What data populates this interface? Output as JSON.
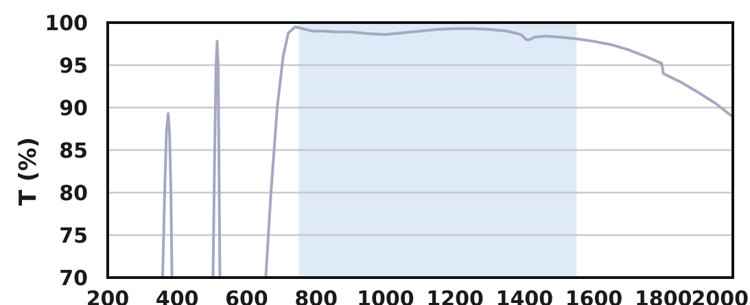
{
  "chart_data": {
    "type": "line",
    "title": "",
    "xlabel": "",
    "ylabel": "T (%)",
    "xlim": [
      200,
      2000
    ],
    "ylim": [
      70,
      100
    ],
    "x_ticks": [
      "200",
      "400",
      "600",
      "800",
      "1000",
      "1200",
      "1400",
      "1600",
      "1800",
      "2000"
    ],
    "y_ticks": [
      "70",
      "75",
      "80",
      "85",
      "90",
      "95",
      "100"
    ],
    "grid": "horizontal",
    "highlight_band": {
      "x_start": 750,
      "x_end": 1550,
      "color": "#deeaf5"
    },
    "series": [
      {
        "color": "#a3a8c3",
        "segments": [
          {
            "x": [
              358,
              364,
              369,
              374,
              378,
              382,
              385
            ],
            "y": [
              70,
              80,
              87,
              89.3,
              87,
              80,
              70
            ]
          },
          {
            "x": [
              503,
              508,
              512,
              515,
              518,
              523
            ],
            "y": [
              70,
              85,
              95,
              97.8,
              95,
              70
            ]
          },
          {
            "x": [
              655,
              670,
              688,
              705,
              720,
              740,
              760,
              790,
              820,
              860,
              900,
              950,
              1000,
              1050,
              1100,
              1150,
              1200,
              1250,
              1300,
              1350,
              1390,
              1405,
              1415,
              1430,
              1460,
              1500,
              1550,
              1600,
              1650,
              1700,
              1750,
              1795,
              1800,
              1850,
              1900,
              1950,
              2000
            ],
            "y": [
              70,
              80,
              90,
              96,
              98.8,
              99.5,
              99.3,
              99.0,
              99.0,
              98.9,
              98.9,
              98.7,
              98.6,
              98.8,
              99.0,
              99.2,
              99.3,
              99.3,
              99.2,
              99.0,
              98.6,
              98.0,
              98.0,
              98.3,
              98.4,
              98.3,
              98.1,
              97.8,
              97.4,
              96.8,
              96.0,
              95.2,
              94.0,
              93.0,
              91.8,
              90.5,
              88.9
            ]
          }
        ]
      }
    ]
  }
}
